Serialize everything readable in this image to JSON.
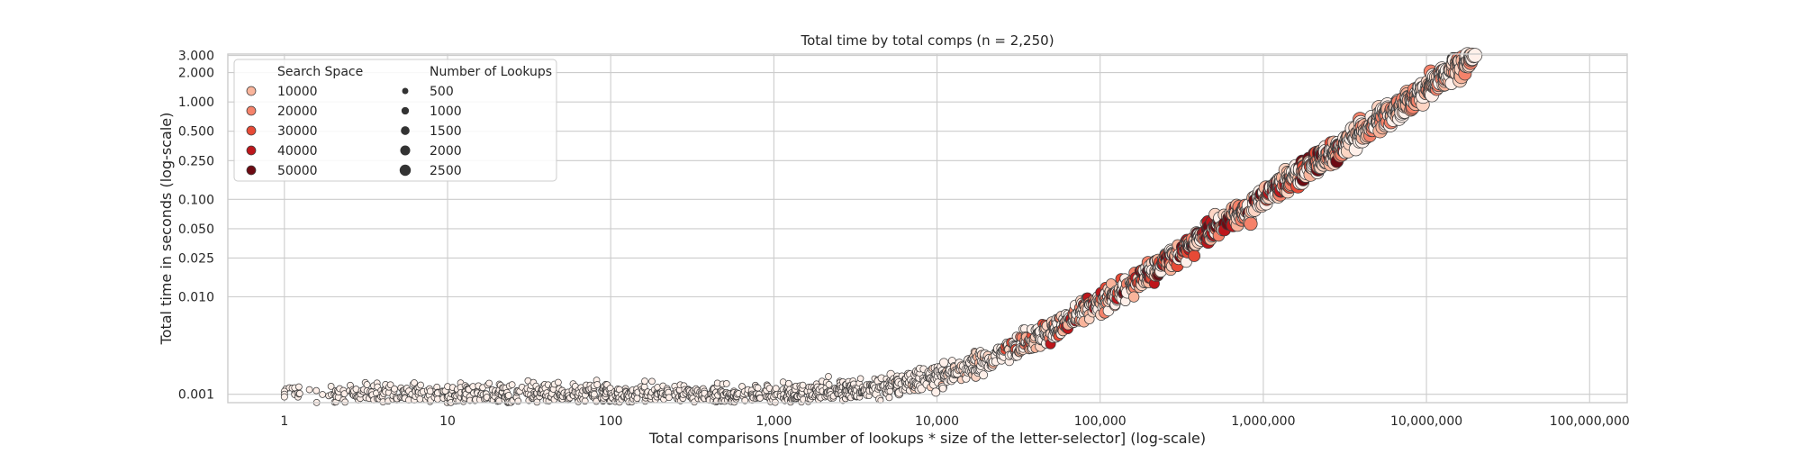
{
  "chart_data": {
    "type": "scatter",
    "title": "Total time by total comps (n = 2,250)",
    "xlabel": "Total comparisons [number of lookups * size of the letter-selector] (log-scale)",
    "ylabel": "Total time in seconds (log-scale)",
    "xscale": "log",
    "yscale": "log",
    "xlim": [
      0.45,
      170000000
    ],
    "ylim": [
      0.00082,
      3.1
    ],
    "grid": true,
    "x_ticks": [
      1,
      10,
      100,
      1000,
      10000,
      100000,
      1000000,
      10000000,
      100000000
    ],
    "x_tick_labels": [
      "1",
      "10",
      "100",
      "1,000",
      "10,000",
      "100,000",
      "1,000,000",
      "10,000,000",
      "100,000,000"
    ],
    "y_ticks": [
      0.001,
      0.01,
      0.025,
      0.05,
      0.1,
      0.25,
      0.5,
      1,
      2,
      3
    ],
    "y_tick_labels": [
      "0.001",
      "0.010",
      "0.025",
      "0.050",
      "0.100",
      "0.250",
      "0.500",
      "1.000",
      "2.000",
      "3.000"
    ],
    "legend": {
      "placement": "top-left",
      "hue_title": "Search Space",
      "size_title": "Number of Lookups",
      "hue_items": [
        {
          "label": "10000",
          "color": "#f9b49b"
        },
        {
          "label": "20000",
          "color": "#f5826a"
        },
        {
          "label": "30000",
          "color": "#e74a36"
        },
        {
          "label": "40000",
          "color": "#bd161b"
        },
        {
          "label": "50000",
          "color": "#6d0a12"
        }
      ],
      "size_items": [
        {
          "label": "500",
          "value": 500
        },
        {
          "label": "1000",
          "value": 1000
        },
        {
          "label": "1500",
          "value": 1500
        },
        {
          "label": "2000",
          "value": 2000
        },
        {
          "label": "2500",
          "value": 2500
        }
      ]
    },
    "colors": {
      "palette": [
        "#fff0ea",
        "#fdd5c4",
        "#f9b49b",
        "#f5826a",
        "#e74a36",
        "#bd161b",
        "#6d0a12"
      ],
      "edge": "#3d3d3d",
      "grid": "#cccccc",
      "frame": "#cccccc"
    },
    "points_per_series": 2250
  }
}
